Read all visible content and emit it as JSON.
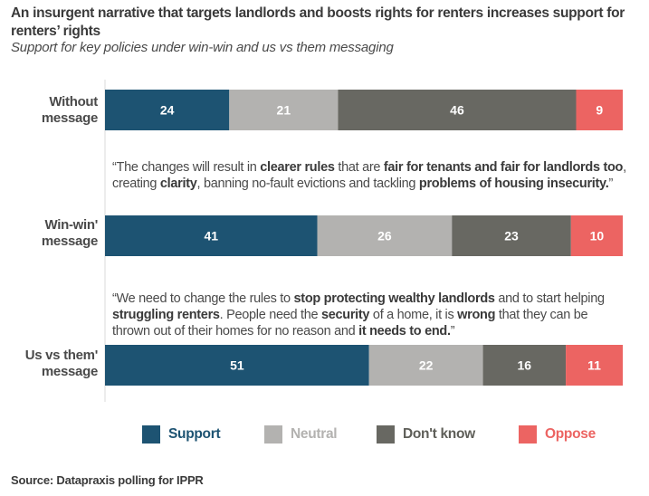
{
  "chart_data": {
    "type": "bar",
    "orientation": "horizontal",
    "stacked": true,
    "title": "An insurgent narrative that targets landlords and boosts rights for renters increases support for renters’ rights",
    "subtitle": "Support for key policies under win-win and us vs them messaging",
    "xlabel": "",
    "ylabel": "",
    "xlim": [
      0,
      100
    ],
    "grid": false,
    "legend_position": "bottom",
    "categories": [
      "Without message",
      "Win-win' message",
      "Us vs them' message"
    ],
    "category_lines": [
      [
        "Without",
        "message"
      ],
      [
        "Win-win'",
        "message"
      ],
      [
        "Us vs them'",
        "message"
      ]
    ],
    "series": [
      {
        "name": "Support",
        "color": "#1d5372",
        "values": [
          24,
          41,
          51
        ]
      },
      {
        "name": "Neutral",
        "color": "#b3b2b0",
        "values": [
          21,
          26,
          22
        ]
      },
      {
        "name": "Don't know",
        "color": "#686862",
        "values": [
          46,
          23,
          16
        ]
      },
      {
        "name": "Oppose",
        "color": "#ec6462",
        "values": [
          9,
          10,
          11
        ]
      }
    ],
    "annotations": [
      {
        "category": "Win-win' message",
        "segments": [
          {
            "text": "“The changes will result in ",
            "bold": false
          },
          {
            "text": "clearer rules",
            "bold": true
          },
          {
            "text": " that are ",
            "bold": false
          },
          {
            "text": "fair for tenants and fair for landlords too",
            "bold": true
          },
          {
            "text": ", creating ",
            "bold": false
          },
          {
            "text": "clarity",
            "bold": true
          },
          {
            "text": ", banning no-fault evictions and tackling ",
            "bold": false
          },
          {
            "text": "problems of housing insecurity.",
            "bold": true
          },
          {
            "text": "”",
            "bold": false
          }
        ]
      },
      {
        "category": "Us vs them' message",
        "segments": [
          {
            "text": "“We need to change the rules to ",
            "bold": false
          },
          {
            "text": "stop protecting wealthy landlords",
            "bold": true
          },
          {
            "text": " and to start helping ",
            "bold": false
          },
          {
            "text": "struggling renters",
            "bold": true
          },
          {
            "text": ". People need the ",
            "bold": false
          },
          {
            "text": "security",
            "bold": true
          },
          {
            "text": " of a home, it is ",
            "bold": false
          },
          {
            "text": "wrong",
            "bold": true
          },
          {
            "text": " that they can be thrown out of their homes for no reason and ",
            "bold": false
          },
          {
            "text": "it needs to end.",
            "bold": true
          },
          {
            "text": "”",
            "bold": false
          }
        ]
      }
    ],
    "source": "Source: Datapraxis polling for IPPR"
  },
  "legend_label_colors": {
    "Support": "#1d5372",
    "Neutral": "#b3b2b0",
    "Don't know": "#5e5e58",
    "Oppose": "#ec6462"
  }
}
